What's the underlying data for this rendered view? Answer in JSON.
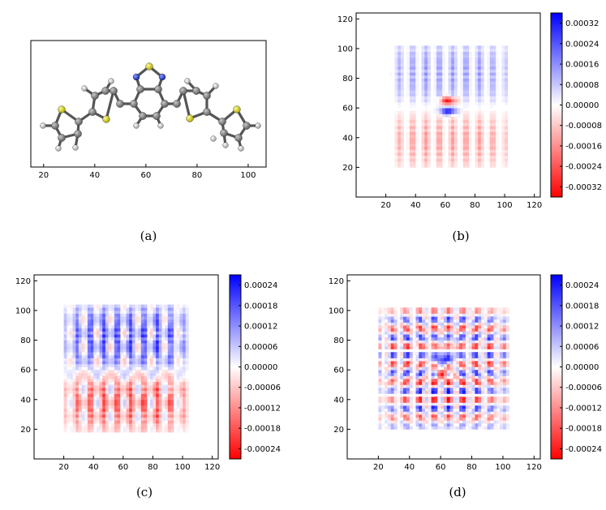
{
  "colors": {
    "positive": "#0a2bff",
    "negative": "#ff0b0b",
    "zero": "#ffffff",
    "carbon": "#808080",
    "hydrogen": "#e8e8e8",
    "sulfur": "#e8e000",
    "nitrogen": "#1e40ff",
    "bond": "#555555"
  },
  "chart_data": [
    {
      "panel": "(a)",
      "type": "molecule",
      "caption": "(a)",
      "xticks": [
        20,
        40,
        60,
        80,
        100
      ],
      "xlim": [
        15,
        107
      ]
    },
    {
      "panel": "(b)",
      "type": "heatmap",
      "caption": "(b)",
      "xticks": [
        20,
        40,
        60,
        80,
        100,
        120
      ],
      "yticks": [
        20,
        40,
        60,
        80,
        100,
        120
      ],
      "xlim": [
        0,
        124
      ],
      "ylim": [
        0,
        124
      ],
      "colorbar_ticks": [
        "0.00032",
        "0.00024",
        "0.00016",
        "0.00008",
        "0.00000",
        "-0.00008",
        "-0.00016",
        "-0.00024",
        "-0.00032"
      ],
      "vmin": -0.00036,
      "vmax": 0.00036,
      "grid_extent": [
        22,
        102,
        20,
        102
      ]
    },
    {
      "panel": "(c)",
      "type": "heatmap",
      "caption": "(c)",
      "xticks": [
        20,
        40,
        60,
        80,
        100,
        120
      ],
      "yticks": [
        20,
        40,
        60,
        80,
        100,
        120
      ],
      "xlim": [
        0,
        124
      ],
      "ylim": [
        0,
        124
      ],
      "colorbar_ticks": [
        "0.00024",
        "0.00018",
        "0.00012",
        "0.00006",
        "0.00000",
        "-0.00006",
        "-0.00012",
        "-0.00018",
        "-0.00024"
      ],
      "vmin": -0.00027,
      "vmax": 0.00027,
      "grid_extent": [
        20,
        104,
        18,
        104
      ]
    },
    {
      "panel": "(d)",
      "type": "heatmap",
      "caption": "(d)",
      "xticks": [
        20,
        40,
        60,
        80,
        100,
        120
      ],
      "yticks": [
        20,
        40,
        60,
        80,
        100,
        120
      ],
      "xlim": [
        0,
        124
      ],
      "ylim": [
        0,
        124
      ],
      "colorbar_ticks": [
        "0.00024",
        "0.00018",
        "0.00012",
        "0.00006",
        "0.00000",
        "-0.00006",
        "-0.00012",
        "-0.00018",
        "-0.00024"
      ],
      "vmin": -0.00027,
      "vmax": 0.00027,
      "grid_extent": [
        20,
        104,
        20,
        104
      ]
    }
  ]
}
